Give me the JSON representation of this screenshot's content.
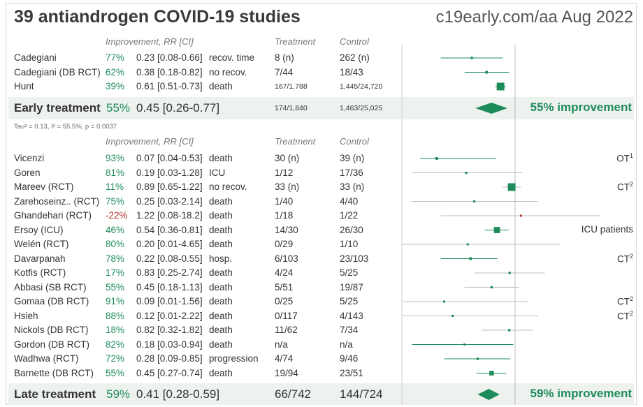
{
  "title": "39 antiandrogen COVID-19 studies",
  "source": "c19early.com/aa Aug 2022",
  "headers": {
    "improvement": "Improvement, RR [CI]",
    "treatment": "Treatment",
    "control": "Control"
  },
  "colors": {
    "accent": "#1e8c5a",
    "negative": "#b0302a",
    "band": "#eef2ee"
  },
  "early": {
    "label": "Early treatment",
    "improvement": "55%",
    "rr": "0.45 [0.26-0.77]",
    "treatment": "174/1,840",
    "control": "1,463/25,025",
    "big_improvement": "55% improvement",
    "heterogeneity": "Tau² = 0.13, I² = 55.5%, p = 0.0037"
  },
  "late": {
    "label": "Late treatment",
    "improvement": "59%",
    "rr": "0.41 [0.28-0.59]",
    "treatment": "66/742",
    "control": "144/724",
    "big_improvement": "59% improvement"
  },
  "early_rows": [
    {
      "name": "Cadegiani",
      "imp": "77%",
      "rr": "0.23 [0.08-0.66]",
      "outcome": "recov. time",
      "tr": "8 (n)",
      "ct": "262 (n)",
      "small": false
    },
    {
      "name": "Cadegiani (DB RCT)",
      "imp": "62%",
      "rr": "0.38 [0.18-0.82]",
      "outcome": "no recov.",
      "tr": "7/44",
      "ct": "18/43",
      "small": false
    },
    {
      "name": "Hunt",
      "imp": "39%",
      "rr": "0.61 [0.51-0.73]",
      "outcome": "death",
      "tr": "167/1,788",
      "ct": "1,445/24,720",
      "small": true
    }
  ],
  "late_rows": [
    {
      "name": "Vicenzi",
      "imp": "93%",
      "rr": "0.07 [0.04-0.53]",
      "outcome": "death",
      "tr": "30 (n)",
      "ct": "39 (n)",
      "note": "OT",
      "sup": "1"
    },
    {
      "name": "Goren",
      "imp": "81%",
      "rr": "0.19 [0.03-1.28]",
      "outcome": "ICU",
      "tr": "1/12",
      "ct": "17/36",
      "note": "",
      "sup": ""
    },
    {
      "name": "Mareev (RCT)",
      "imp": "11%",
      "rr": "0.89 [0.65-1.22]",
      "outcome": "no recov.",
      "tr": "33 (n)",
      "ct": "33 (n)",
      "note": "CT",
      "sup": "2"
    },
    {
      "name": "Zarehoseinz.. (RCT)",
      "imp": "75%",
      "rr": "0.25 [0.03-2.14]",
      "outcome": "death",
      "tr": "1/40",
      "ct": "4/40",
      "note": "",
      "sup": ""
    },
    {
      "name": "Ghandehari (RCT)",
      "imp": "-22%",
      "rr": "1.22 [0.08-18.2]",
      "outcome": "death",
      "tr": "1/18",
      "ct": "1/22",
      "note": "",
      "sup": ""
    },
    {
      "name": "Ersoy (ICU)",
      "imp": "46%",
      "rr": "0.54 [0.36-0.81]",
      "outcome": "death",
      "tr": "14/30",
      "ct": "26/30",
      "note": "ICU patients",
      "sup": ""
    },
    {
      "name": "Welén (RCT)",
      "imp": "80%",
      "rr": "0.20 [0.01-4.65]",
      "outcome": "death",
      "tr": "0/29",
      "ct": "1/10",
      "note": "",
      "sup": ""
    },
    {
      "name": "Davarpanah",
      "imp": "78%",
      "rr": "0.22 [0.08-0.55]",
      "outcome": "hosp.",
      "tr": "6/103",
      "ct": "23/103",
      "note": "CT",
      "sup": "2"
    },
    {
      "name": "Kotfis (RCT)",
      "imp": "17%",
      "rr": "0.83 [0.25-2.74]",
      "outcome": "death",
      "tr": "4/24",
      "ct": "5/25",
      "note": "",
      "sup": ""
    },
    {
      "name": "Abbasi (SB RCT)",
      "imp": "55%",
      "rr": "0.45 [0.18-1.13]",
      "outcome": "death",
      "tr": "5/51",
      "ct": "19/87",
      "note": "",
      "sup": ""
    },
    {
      "name": "Gomaa (DB RCT)",
      "imp": "91%",
      "rr": "0.09 [0.01-1.56]",
      "outcome": "death",
      "tr": "0/25",
      "ct": "5/25",
      "note": "CT",
      "sup": "2"
    },
    {
      "name": "Hsieh",
      "imp": "88%",
      "rr": "0.12 [0.01-2.22]",
      "outcome": "death",
      "tr": "0/117",
      "ct": "4/143",
      "note": "CT",
      "sup": "2"
    },
    {
      "name": "Nickols (DB RCT)",
      "imp": "18%",
      "rr": "0.82 [0.32-1.82]",
      "outcome": "death",
      "tr": "11/62",
      "ct": "7/34",
      "note": "",
      "sup": ""
    },
    {
      "name": "Gordon (DB RCT)",
      "imp": "82%",
      "rr": "0.18 [0.03-0.94]",
      "outcome": "death",
      "tr": "n/a",
      "ct": "n/a",
      "note": "",
      "sup": ""
    },
    {
      "name": "Wadhwa (RCT)",
      "imp": "72%",
      "rr": "0.28 [0.09-0.85]",
      "outcome": "progression",
      "tr": "4/74",
      "ct": "9/46",
      "note": "",
      "sup": ""
    },
    {
      "name": "Barnette (DB RCT)",
      "imp": "55%",
      "rr": "0.45 [0.27-0.74]",
      "outcome": "death",
      "tr": "19/94",
      "ct": "23/51",
      "note": "",
      "sup": ""
    }
  ],
  "chart_data": {
    "type": "forest",
    "scale": "log",
    "xlim": [
      0.05,
      20
    ],
    "early": [
      {
        "study": "Cadegiani",
        "rr": 0.23,
        "lo": 0.08,
        "hi": 0.66,
        "weight": 3
      },
      {
        "study": "Cadegiani (DB RCT)",
        "rr": 0.38,
        "lo": 0.18,
        "hi": 0.82,
        "weight": 3.5
      },
      {
        "study": "Hunt",
        "rr": 0.61,
        "lo": 0.51,
        "hi": 0.73,
        "weight": 10
      }
    ],
    "early_summary": {
      "rr": 0.45,
      "lo": 0.26,
      "hi": 0.77
    },
    "late": [
      {
        "study": "Vicenzi",
        "rr": 0.07,
        "lo": 0.04,
        "hi": 0.53,
        "weight": 3.5
      },
      {
        "study": "Goren",
        "rr": 0.19,
        "lo": 0.03,
        "hi": 1.28,
        "weight": 2
      },
      {
        "study": "Mareev (RCT)",
        "rr": 0.89,
        "lo": 0.65,
        "hi": 1.22,
        "weight": 10
      },
      {
        "study": "Zarehoseinz.. (RCT)",
        "rr": 0.25,
        "lo": 0.03,
        "hi": 2.14,
        "weight": 2
      },
      {
        "study": "Ghandehari (RCT)",
        "rr": 1.22,
        "lo": 0.08,
        "hi": 18.2,
        "weight": 2
      },
      {
        "study": "Ersoy (ICU)",
        "rr": 0.54,
        "lo": 0.36,
        "hi": 0.81,
        "weight": 8
      },
      {
        "study": "Welén (RCT)",
        "rr": 0.2,
        "lo": 0.01,
        "hi": 4.65,
        "weight": 2
      },
      {
        "study": "Davarpanah",
        "rr": 0.22,
        "lo": 0.08,
        "hi": 0.55,
        "weight": 3.5
      },
      {
        "study": "Kotfis (RCT)",
        "rr": 0.83,
        "lo": 0.25,
        "hi": 2.74,
        "weight": 3
      },
      {
        "study": "Abbasi (SB RCT)",
        "rr": 0.45,
        "lo": 0.18,
        "hi": 1.13,
        "weight": 3
      },
      {
        "study": "Gomaa (DB RCT)",
        "rr": 0.09,
        "lo": 0.01,
        "hi": 1.56,
        "weight": 2
      },
      {
        "study": "Hsieh",
        "rr": 0.12,
        "lo": 0.01,
        "hi": 2.22,
        "weight": 2
      },
      {
        "study": "Nickols (DB RCT)",
        "rr": 0.82,
        "lo": 0.32,
        "hi": 1.82,
        "weight": 3
      },
      {
        "study": "Gordon (DB RCT)",
        "rr": 0.18,
        "lo": 0.03,
        "hi": 0.94,
        "weight": 2
      },
      {
        "study": "Wadhwa (RCT)",
        "rr": 0.28,
        "lo": 0.09,
        "hi": 0.85,
        "weight": 3
      },
      {
        "study": "Barnette (DB RCT)",
        "rr": 0.45,
        "lo": 0.27,
        "hi": 0.74,
        "weight": 6
      }
    ],
    "late_summary": {
      "rr": 0.41,
      "lo": 0.28,
      "hi": 0.59
    }
  }
}
